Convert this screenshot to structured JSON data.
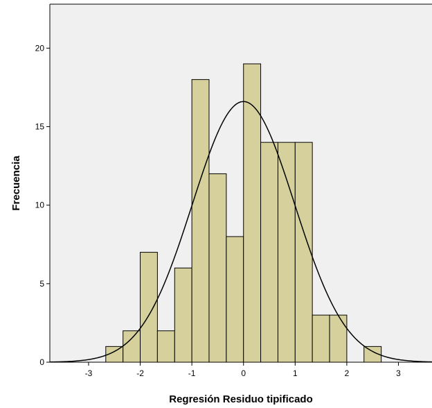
{
  "chart_data": {
    "type": "bar",
    "subtype": "histogram",
    "title": "",
    "xlabel": "Regresión Residuo tipificado",
    "ylabel": "Frecuencia",
    "xlim": [
      -3.75,
      3.65
    ],
    "ylim": [
      0,
      22.8
    ],
    "xticks": [
      -3,
      -2,
      -1,
      0,
      1,
      2,
      3
    ],
    "xtick_labels": [
      "-3",
      "-2",
      "-1",
      "0",
      "1",
      "2",
      "3"
    ],
    "yticks": [
      0,
      5,
      10,
      15,
      20
    ],
    "ytick_labels": [
      "0",
      "5",
      "10",
      "15",
      "20"
    ],
    "bin_width": 0.3333,
    "bins": [
      {
        "start": -2.667,
        "end": -2.333,
        "count": 1
      },
      {
        "start": -2.333,
        "end": -2.0,
        "count": 2
      },
      {
        "start": -2.0,
        "end": -1.667,
        "count": 7
      },
      {
        "start": -1.667,
        "end": -1.333,
        "count": 2
      },
      {
        "start": -1.333,
        "end": -1.0,
        "count": 6
      },
      {
        "start": -1.0,
        "end": -0.667,
        "count": 18
      },
      {
        "start": -0.667,
        "end": -0.333,
        "count": 12
      },
      {
        "start": -0.333,
        "end": 0.0,
        "count": 8
      },
      {
        "start": 0.0,
        "end": 0.333,
        "count": 19
      },
      {
        "start": 0.333,
        "end": 0.667,
        "count": 14
      },
      {
        "start": 0.667,
        "end": 1.0,
        "count": 14
      },
      {
        "start": 1.0,
        "end": 1.333,
        "count": 14
      },
      {
        "start": 1.333,
        "end": 1.667,
        "count": 3
      },
      {
        "start": 1.667,
        "end": 2.0,
        "count": 3
      },
      {
        "start": 2.333,
        "end": 2.667,
        "count": 1
      }
    ],
    "normal_curve": {
      "mean": 0,
      "sd": 0.99,
      "peak": 16.6
    },
    "grid": false,
    "colors": {
      "plot_background": "#f0f0f0",
      "bar_fill": "#d6d09c",
      "bar_stroke": "#000000",
      "curve": "#000000",
      "frame": "#000000"
    }
  }
}
